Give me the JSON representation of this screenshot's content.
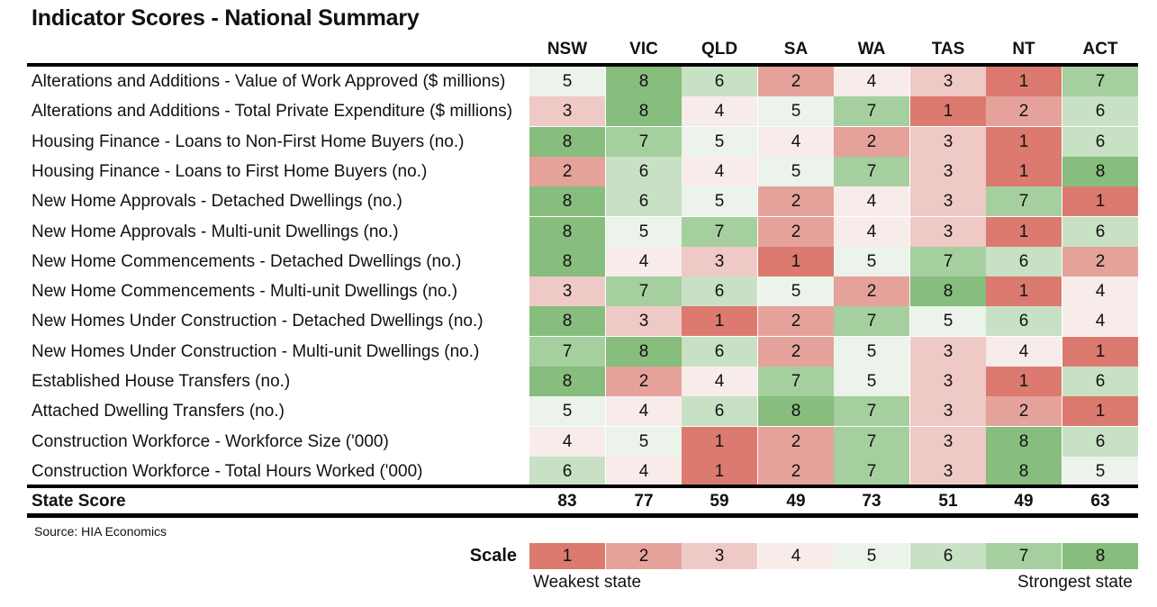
{
  "title": "Indicator Scores - National Summary",
  "states": [
    "NSW",
    "VIC",
    "QLD",
    "SA",
    "WA",
    "TAS",
    "NT",
    "ACT"
  ],
  "colors": {
    "1": "#dc7a70",
    "2": "#e5a29b",
    "3": "#efc9c5",
    "4": "#f8eceb",
    "5": "#ebf3ea",
    "6": "#c8e1c5",
    "7": "#a5cf9e",
    "8": "#87bd7d"
  },
  "rows": [
    {
      "label": "Alterations and Additions - Value of Work Approved ($ millions)",
      "scores": [
        5,
        8,
        6,
        2,
        4,
        3,
        1,
        7
      ]
    },
    {
      "label": "Alterations and Additions - Total Private Expenditure ($ millions)",
      "scores": [
        3,
        8,
        4,
        5,
        7,
        1,
        2,
        6
      ]
    },
    {
      "label": "Housing Finance - Loans to Non-First Home Buyers (no.)",
      "scores": [
        8,
        7,
        5,
        4,
        2,
        3,
        1,
        6
      ]
    },
    {
      "label": "Housing Finance - Loans to First Home Buyers (no.)",
      "scores": [
        2,
        6,
        4,
        5,
        7,
        3,
        1,
        8
      ]
    },
    {
      "label": "New Home Approvals - Detached Dwellings (no.)",
      "scores": [
        8,
        6,
        5,
        2,
        4,
        3,
        7,
        1
      ]
    },
    {
      "label": "New Home Approvals - Multi-unit Dwellings (no.)",
      "scores": [
        8,
        5,
        7,
        2,
        4,
        3,
        1,
        6
      ]
    },
    {
      "label": "New Home Commencements - Detached Dwellings (no.)",
      "scores": [
        8,
        4,
        3,
        1,
        5,
        7,
        6,
        2
      ]
    },
    {
      "label": "New Home Commencements - Multi-unit Dwellings (no.)",
      "scores": [
        3,
        7,
        6,
        5,
        2,
        8,
        1,
        4
      ]
    },
    {
      "label": "New Homes Under Construction - Detached Dwellings (no.)",
      "scores": [
        8,
        3,
        1,
        2,
        7,
        5,
        6,
        4
      ]
    },
    {
      "label": "New Homes Under Construction - Multi-unit Dwellings (no.)",
      "scores": [
        7,
        8,
        6,
        2,
        5,
        3,
        4,
        1
      ]
    },
    {
      "label": "Established House Transfers (no.)",
      "scores": [
        8,
        2,
        4,
        7,
        5,
        3,
        1,
        6
      ]
    },
    {
      "label": "Attached Dwelling Transfers (no.)",
      "scores": [
        5,
        4,
        6,
        8,
        7,
        3,
        2,
        1
      ]
    },
    {
      "label": "Construction Workforce - Workforce Size ('000)",
      "scores": [
        4,
        5,
        1,
        2,
        7,
        3,
        8,
        6
      ]
    },
    {
      "label": "Construction Workforce - Total Hours Worked ('000)",
      "scores": [
        6,
        4,
        1,
        2,
        7,
        3,
        8,
        5
      ]
    }
  ],
  "state_score": {
    "label": "State Score",
    "values": [
      83,
      77,
      59,
      49,
      73,
      51,
      49,
      63
    ]
  },
  "source": "Source: HIA Economics",
  "scale": {
    "label": "Scale",
    "values": [
      1,
      2,
      3,
      4,
      5,
      6,
      7,
      8
    ],
    "weakest": "Weakest state",
    "strongest": "Strongest state"
  },
  "chart_data": {
    "type": "heatmap",
    "title": "Indicator Scores - National Summary",
    "columns": [
      "NSW",
      "VIC",
      "QLD",
      "SA",
      "WA",
      "TAS",
      "NT",
      "ACT"
    ],
    "totals_label": "State Score",
    "totals": [
      83,
      77,
      59,
      49,
      73,
      51,
      49,
      63
    ],
    "color_scale": {
      "min": 1,
      "max": 8,
      "low": "Weakest state",
      "high": "Strongest state"
    }
  }
}
